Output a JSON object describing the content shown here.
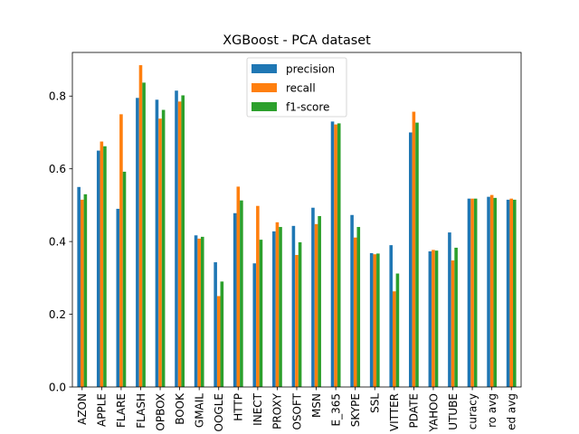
{
  "chart_data": {
    "type": "bar",
    "title": "XGBoost - PCA dataset",
    "xlabel": "",
    "ylabel": "",
    "ylim": [
      0,
      0.92
    ],
    "yticks": [
      "0.0",
      "0.2",
      "0.4",
      "0.6",
      "0.8"
    ],
    "grid": false,
    "legend_position": "top-center",
    "categories": [
      "AZON",
      "APPLE",
      "FLARE",
      "FLASH",
      "OPBOX",
      "BOOK",
      "GMAIL",
      "OOGLE",
      "HTTP",
      "INECT",
      "PROXY",
      "OSOFT",
      "MSN",
      "E_365",
      "SKYPE",
      "SSL",
      "VITTER",
      "PDATE",
      "YAHOO",
      "UTUBE",
      "curacy",
      "ro avg",
      "ed avg"
    ],
    "series": [
      {
        "name": "precision",
        "color": "#1f77b4",
        "values": [
          0.55,
          0.65,
          0.49,
          0.795,
          0.79,
          0.815,
          0.417,
          0.343,
          0.478,
          0.34,
          0.428,
          0.443,
          0.493,
          0.73,
          0.473,
          0.368,
          0.39,
          0.7,
          0.373,
          0.425,
          0.518,
          0.523,
          0.515
        ]
      },
      {
        "name": "recall",
        "color": "#ff7f0e",
        "values": [
          0.515,
          0.675,
          0.75,
          0.885,
          0.738,
          0.785,
          0.408,
          0.25,
          0.551,
          0.498,
          0.453,
          0.363,
          0.448,
          0.722,
          0.411,
          0.365,
          0.263,
          0.757,
          0.377,
          0.348,
          0.518,
          0.528,
          0.518
        ]
      },
      {
        "name": "f1-score",
        "color": "#2ca02c",
        "values": [
          0.53,
          0.662,
          0.592,
          0.837,
          0.762,
          0.802,
          0.413,
          0.29,
          0.513,
          0.405,
          0.44,
          0.398,
          0.47,
          0.725,
          0.44,
          0.367,
          0.312,
          0.727,
          0.375,
          0.383,
          0.518,
          0.52,
          0.515
        ]
      }
    ]
  }
}
